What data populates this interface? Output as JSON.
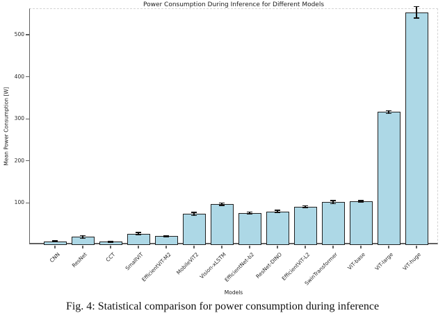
{
  "figure": {
    "title": "Power Consumption During Inference for Different Models",
    "xlabel": "Models",
    "ylabel": "Mean Power Consumption [W]",
    "caption": "Fig. 4: Statistical comparison for power consumption during inference"
  },
  "chart_data": {
    "type": "bar",
    "title": "Power Consumption During Inference for Different Models",
    "xlabel": "Models",
    "ylabel": "Mean Power Consumption [W]",
    "categories": [
      "CNN",
      "ResNet",
      "CCT",
      "SmallViT",
      "EfficientViT-M2",
      "MobileViT2",
      "Vision-xLSTM",
      "EfficientNet-b2",
      "ResNet-DINO",
      "EfficientViT-L2",
      "SwinTransformer",
      "ViT-base",
      "ViT-large",
      "ViT-huge"
    ],
    "values": [
      9,
      19,
      8,
      27,
      21,
      74,
      97,
      76,
      80,
      91,
      102,
      104,
      316,
      553
    ],
    "errors": [
      1.5,
      4,
      1.5,
      3,
      2,
      4,
      3,
      2.5,
      3,
      2.5,
      4,
      2,
      4,
      14
    ],
    "yticks": [
      100,
      200,
      300,
      400,
      500
    ],
    "ylim": [
      0,
      561
    ],
    "grid": false,
    "legend": null,
    "bar_color": "#ADD8E6",
    "bar_edge_color": "#1f1f1f",
    "error_color": "#111111",
    "xtick_rotation_deg": 45
  }
}
